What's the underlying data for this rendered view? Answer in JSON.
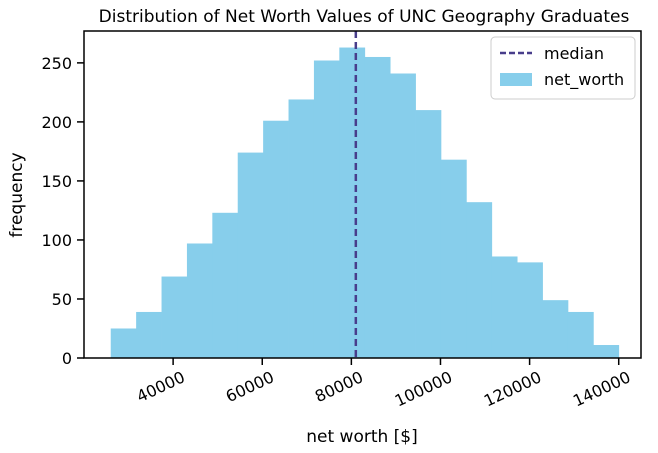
{
  "chart_data": {
    "type": "histogram",
    "title": "Distribution of Net Worth Values of UNC Geography Graduates",
    "xlabel": "net worth [$]",
    "ylabel": "frequency",
    "xlim": [
      20000,
      145000
    ],
    "ylim": [
      0,
      277
    ],
    "xticks": [
      40000,
      60000,
      80000,
      100000,
      120000,
      140000
    ],
    "xtick_labels": [
      "40000",
      "60000",
      "80000",
      "100000",
      "120000",
      "140000"
    ],
    "yticks": [
      0,
      50,
      100,
      150,
      200,
      250
    ],
    "ytick_labels": [
      "0",
      "50",
      "100",
      "150",
      "200",
      "250"
    ],
    "bin_start": 26000,
    "bin_width": 5700,
    "values": [
      25,
      39,
      69,
      97,
      123,
      174,
      201,
      219,
      252,
      263,
      255,
      241,
      210,
      168,
      132,
      86,
      81,
      49,
      39,
      11
    ],
    "median": 81000,
    "grid": false,
    "legend_position": "top-right",
    "series": [
      {
        "name": "net_worth",
        "color": "#87ceeb"
      }
    ],
    "lines": [
      {
        "name": "median",
        "color": "#483d8b",
        "style": "dashed"
      }
    ]
  }
}
